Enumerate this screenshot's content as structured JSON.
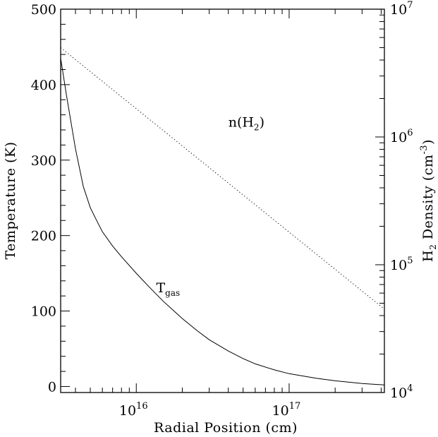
{
  "chart_data": {
    "type": "line",
    "xlabel": "Radial Position (cm)",
    "ylabel_left": "Temperature (K)",
    "ylabel_right": {
      "prefix": "H",
      "sub": "2",
      "middle": " Density (cm",
      "sup": "-3",
      "suffix": ")"
    },
    "xscale": "log",
    "xlim": [
      3200000000000000.0,
      4.2e+17
    ],
    "ylim_left": [
      -8,
      500
    ],
    "yscale_right": "log",
    "ylim_right": [
      10000,
      10000000
    ],
    "x_ticks": [
      {
        "value": 1e+16,
        "base": "10",
        "exp": "16"
      },
      {
        "value": 1e+17,
        "base": "10",
        "exp": "17"
      }
    ],
    "y_left_ticks": [
      0,
      100,
      200,
      300,
      400,
      500
    ],
    "y_right_ticks": [
      {
        "value": 10000,
        "base": "10",
        "exp": "4"
      },
      {
        "value": 100000,
        "base": "10",
        "exp": "5"
      },
      {
        "value": 1000000,
        "base": "10",
        "exp": "6"
      },
      {
        "value": 10000000,
        "base": "10",
        "exp": "7"
      }
    ],
    "series": [
      {
        "name": "T_gas",
        "label_main": "T",
        "label_sub": "gas",
        "axis": "left",
        "line_style": "solid",
        "label_at": {
          "x": 1.35e+16,
          "y": 125
        },
        "x": [
          3200000000000000.0,
          3500000000000000.0,
          4000000000000000.0,
          4500000000000000.0,
          5000000000000000.0,
          5500000000000000.0,
          6000000000000000.0,
          7000000000000000.0,
          8000000000000000.0,
          1e+16,
          1.2e+16,
          1.5e+16,
          2e+16,
          2.5e+16,
          3e+16,
          4e+16,
          5e+16,
          6e+16,
          8e+16,
          1e+17,
          1.5e+17,
          2e+17,
          3e+17,
          4.2e+17
        ],
        "y": [
          435,
          385,
          315,
          265,
          237,
          220,
          205,
          186,
          172,
          150,
          133,
          113,
          90,
          74,
          62,
          47,
          37,
          30,
          22,
          17,
          11,
          7.5,
          4,
          2
        ]
      },
      {
        "name": "n(H2)",
        "label_main": "n(H",
        "label_sub": "2",
        "label_tail": ")",
        "axis": "right",
        "line_style": "dotted",
        "label_at": {
          "x": 4e+16,
          "y_right": 1200000
        },
        "x": [
          3200000000000000.0,
          4.2e+17
        ],
        "y": [
          5000000,
          45000
        ]
      }
    ]
  }
}
